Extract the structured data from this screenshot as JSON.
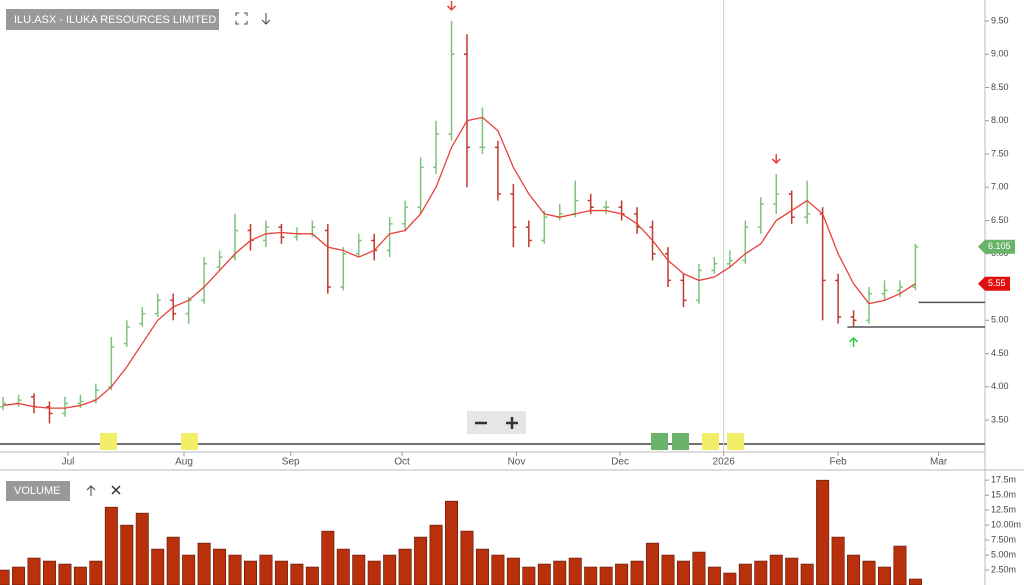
{
  "chart_data": [
    {
      "type": "ohlc",
      "title": "ILU.ASX - ILUKA RESOURCES LIMITED",
      "xlim": [
        -0.2,
        63.5
      ],
      "xticks": [
        {
          "value": 4.2,
          "label": "Jul"
        },
        {
          "value": 11.7,
          "label": "Aug"
        },
        {
          "value": 18.6,
          "label": "Sep"
        },
        {
          "value": 25.8,
          "label": "Oct"
        },
        {
          "value": 33.2,
          "label": "Nov"
        },
        {
          "value": 39.9,
          "label": "Dec"
        },
        {
          "value": 46.6,
          "label": "2026"
        },
        {
          "value": 54.0,
          "label": "Feb"
        },
        {
          "value": 60.5,
          "label": "Mar"
        }
      ],
      "divider_tick": 6,
      "ylim": [
        3.02,
        9.74
      ],
      "yticks": [
        {
          "value": 3.5,
          "label": "3.50"
        },
        {
          "value": 4,
          "label": "4.00"
        },
        {
          "value": 4.5,
          "label": "4.50"
        },
        {
          "value": 5,
          "label": "5.00"
        },
        {
          "value": 5.5,
          "label": "5.50"
        },
        {
          "value": 6,
          "label": "6.00"
        },
        {
          "value": 6.5,
          "label": "6.50"
        },
        {
          "value": 7,
          "label": "7.00"
        },
        {
          "value": 7.5,
          "label": "7.50"
        },
        {
          "value": 8,
          "label": "8.00"
        },
        {
          "value": 8.5,
          "label": "8.50"
        },
        {
          "value": 9,
          "label": "9.00"
        },
        {
          "value": 9.5,
          "label": "9.50"
        }
      ],
      "open": [
        3.7,
        3.75,
        3.85,
        3.7,
        3.6,
        3.75,
        3.8,
        4.0,
        4.65,
        4.95,
        5.1,
        5.3,
        5.1,
        5.3,
        5.8,
        5.95,
        6.35,
        6.2,
        6.4,
        6.25,
        6.3,
        6.35,
        5.5,
        6.0,
        6.2,
        6.05,
        6.45,
        6.7,
        7.3,
        7.8,
        9.0,
        7.6,
        7.6,
        6.9,
        6.4,
        6.2,
        6.55,
        6.6,
        6.8,
        6.7,
        6.7,
        6.6,
        6.4,
        6.0,
        5.6,
        5.3,
        5.75,
        5.85,
        5.9,
        6.4,
        6.75,
        6.9,
        6.55,
        6.6,
        5.6,
        5.05,
        5.0,
        5.4,
        5.45,
        5.5
      ],
      "high": [
        3.85,
        3.88,
        3.9,
        3.78,
        3.85,
        3.88,
        4.05,
        4.75,
        5.0,
        5.2,
        5.4,
        5.4,
        5.35,
        5.95,
        6.05,
        6.6,
        6.45,
        6.5,
        6.45,
        6.4,
        6.5,
        6.45,
        6.1,
        6.3,
        6.3,
        6.55,
        6.8,
        7.45,
        8.0,
        9.5,
        9.3,
        8.2,
        7.7,
        7.05,
        6.5,
        6.65,
        6.75,
        7.1,
        6.9,
        6.8,
        6.8,
        6.7,
        6.5,
        6.1,
        5.7,
        5.85,
        5.95,
        6.05,
        6.5,
        6.85,
        7.2,
        6.95,
        7.1,
        6.7,
        5.7,
        5.15,
        5.5,
        5.6,
        5.6,
        6.15
      ],
      "low": [
        3.65,
        3.7,
        3.6,
        3.45,
        3.55,
        3.68,
        3.75,
        3.95,
        4.6,
        4.9,
        5.05,
        5.0,
        4.95,
        5.25,
        5.75,
        5.9,
        6.05,
        6.1,
        6.15,
        6.2,
        6.25,
        5.4,
        5.45,
        5.95,
        5.9,
        5.95,
        6.35,
        6.6,
        7.2,
        7.7,
        7.0,
        7.5,
        6.8,
        6.1,
        6.1,
        6.15,
        6.5,
        6.55,
        6.6,
        6.6,
        6.5,
        6.3,
        5.9,
        5.5,
        5.2,
        5.25,
        5.7,
        5.8,
        5.85,
        6.3,
        6.6,
        6.45,
        6.45,
        5.0,
        4.95,
        4.9,
        4.95,
        5.3,
        5.35,
        5.45
      ],
      "close": [
        3.75,
        3.8,
        3.7,
        3.6,
        3.75,
        3.78,
        3.95,
        4.6,
        4.9,
        5.1,
        5.3,
        5.1,
        5.3,
        5.85,
        5.95,
        6.35,
        6.2,
        6.4,
        6.25,
        6.3,
        6.4,
        5.5,
        6.0,
        6.2,
        6.05,
        6.45,
        6.7,
        7.3,
        7.8,
        9.0,
        7.6,
        7.6,
        6.9,
        6.4,
        6.2,
        6.55,
        6.6,
        6.8,
        6.7,
        6.7,
        6.6,
        6.4,
        6.0,
        5.6,
        5.3,
        5.75,
        5.85,
        5.9,
        6.4,
        6.75,
        6.9,
        6.55,
        6.6,
        5.6,
        5.05,
        5.0,
        5.4,
        5.45,
        5.5,
        6.105
      ],
      "up_color": "#7cc47c",
      "down_color": "#c0392b",
      "moving_average": {
        "color": "#e8413c",
        "values": [
          3.72,
          3.75,
          3.7,
          3.68,
          3.68,
          3.72,
          3.8,
          4.0,
          4.3,
          4.65,
          5.0,
          5.2,
          5.3,
          5.5,
          5.75,
          6.0,
          6.2,
          6.3,
          6.32,
          6.3,
          6.3,
          6.1,
          6.05,
          5.95,
          6.05,
          6.3,
          6.35,
          6.6,
          7.0,
          7.6,
          8.0,
          8.05,
          7.85,
          7.3,
          6.9,
          6.6,
          6.55,
          6.6,
          6.65,
          6.65,
          6.6,
          6.45,
          6.2,
          5.9,
          5.7,
          5.6,
          5.65,
          5.8,
          6.0,
          6.15,
          6.5,
          6.65,
          6.8,
          6.6,
          6.0,
          5.55,
          5.25,
          5.3,
          5.4,
          5.55
        ]
      },
      "levels": [
        {
          "value": 5.27,
          "start": 59.2
        },
        {
          "value": 4.9,
          "start": 54.6
        }
      ],
      "sell_signals": [
        29,
        50
      ],
      "buy_signals": [
        55
      ],
      "grid": false
    },
    {
      "type": "volume",
      "title": "VOLUME",
      "ylim": [
        0,
        19.2
      ],
      "yticks": [
        {
          "value": 2.5,
          "label": "2.50m"
        },
        {
          "value": 5,
          "label": "5.00m"
        },
        {
          "value": 7.5,
          "label": "7.50m"
        },
        {
          "value": 10,
          "label": "10.00m"
        },
        {
          "value": 12.5,
          "label": "12.5m"
        },
        {
          "value": 15,
          "label": "15.0m"
        },
        {
          "value": 17.5,
          "label": "17.5m"
        }
      ],
      "values": [
        2.5,
        3,
        4.5,
        4,
        3.5,
        3,
        4,
        13,
        10,
        12,
        6,
        8,
        5,
        7,
        6,
        5,
        4,
        5,
        4,
        3.5,
        3,
        9,
        6,
        5,
        4,
        5,
        6,
        8,
        10,
        14,
        9,
        6,
        5,
        4.5,
        3,
        3.5,
        4,
        4.5,
        3,
        3,
        3.5,
        4,
        7,
        5,
        4,
        5.5,
        3,
        2,
        3.5,
        4,
        5,
        4.5,
        3.5,
        17.5,
        8,
        5,
        4,
        3,
        6.5,
        1
      ],
      "color": "#b8300c"
    }
  ]
}
